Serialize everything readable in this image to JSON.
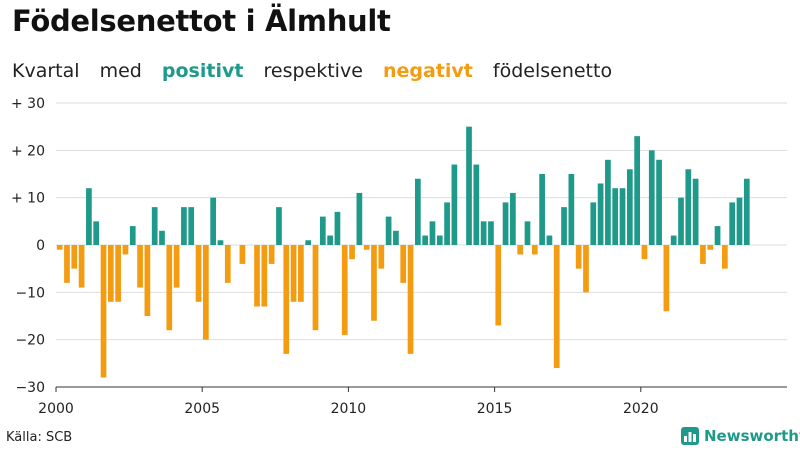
{
  "title": "Födelsenettot i Älmhult",
  "subtitle": {
    "part1": "Kvartal",
    "part2": "med",
    "positive_label": "positivt",
    "part3": "respektive",
    "negative_label": "negativt",
    "part4": "födelsenetto"
  },
  "source": "Källa: SCB",
  "brand": {
    "name": "Newsworthy",
    "icon": "newsworthy-logo-icon"
  },
  "colors": {
    "positive": "#1f9a8a",
    "negative": "#f39c12",
    "grid": "#dddddd",
    "axis": "#333333"
  },
  "chart_data": {
    "type": "bar",
    "start_year": 2000,
    "end_year": 2024,
    "frequency": "quarterly",
    "ylim": [
      -30,
      30
    ],
    "y_ticks": [
      30,
      20,
      10,
      0,
      -10,
      -20,
      -30
    ],
    "y_tick_labels": [
      "+ 30",
      "+ 20",
      "+ 10",
      "0",
      "−10",
      "−20",
      "−30"
    ],
    "x_ticks": [
      2000,
      2005,
      2010,
      2015,
      2020
    ],
    "x_tick_labels": [
      "2000",
      "2005",
      "2010",
      "2015",
      "2020"
    ],
    "grid": true,
    "values": [
      -1,
      -8,
      -5,
      -9,
      12,
      5,
      -28,
      -12,
      -12,
      -2,
      4,
      -9,
      -15,
      8,
      3,
      -18,
      -9,
      8,
      8,
      -12,
      -20,
      10,
      1,
      -8,
      0,
      -4,
      0,
      -13,
      -13,
      -4,
      8,
      -23,
      -12,
      -12,
      1,
      -18,
      6,
      2,
      7,
      -19,
      -3,
      11,
      -1,
      -16,
      -5,
      6,
      3,
      -8,
      -23,
      14,
      2,
      5,
      2,
      9,
      17,
      0,
      25,
      17,
      5,
      5,
      -17,
      9,
      11,
      -2,
      5,
      -2,
      15,
      2,
      -26,
      8,
      15,
      -5,
      -10,
      9,
      13,
      18,
      12,
      12,
      16,
      23,
      -3,
      20,
      18,
      -14,
      2,
      10,
      16,
      14,
      -4,
      -1,
      4,
      -5,
      9,
      10,
      14
    ]
  }
}
